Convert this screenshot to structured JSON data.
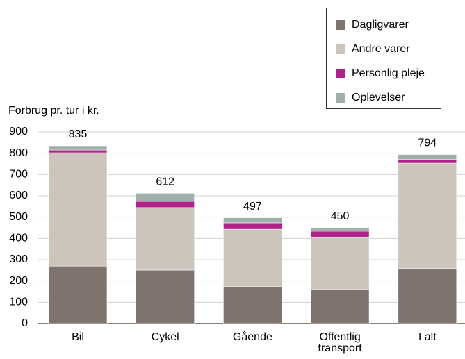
{
  "chart_data": {
    "type": "stacked_bar",
    "y_axis_label": "Forbrug pr. tur i kr.",
    "categories": [
      "Bil",
      "Cykel",
      "Gående",
      "Offentlig transport",
      "I alt"
    ],
    "series": [
      {
        "name": "Dagligvarer",
        "color": "#7f746d",
        "values": [
          270,
          251,
          173,
          160,
          258
        ]
      },
      {
        "name": "Andre varer",
        "color": "#cdc4bb",
        "values": [
          532,
          294,
          270,
          244,
          495
        ]
      },
      {
        "name": "Personlig pleje",
        "color": "#b0218a",
        "values": [
          13,
          29,
          30,
          30,
          17
        ]
      },
      {
        "name": "Oplevelser",
        "color": "#9fb0ab",
        "values": [
          20,
          38,
          24,
          16,
          24
        ]
      }
    ],
    "totals": [
      835,
      612,
      497,
      450,
      794
    ],
    "ylim": [
      0,
      900
    ],
    "yticks": [
      0,
      100,
      200,
      300,
      400,
      500,
      600,
      700,
      800,
      900
    ],
    "grid": true,
    "legend": "top-right"
  }
}
